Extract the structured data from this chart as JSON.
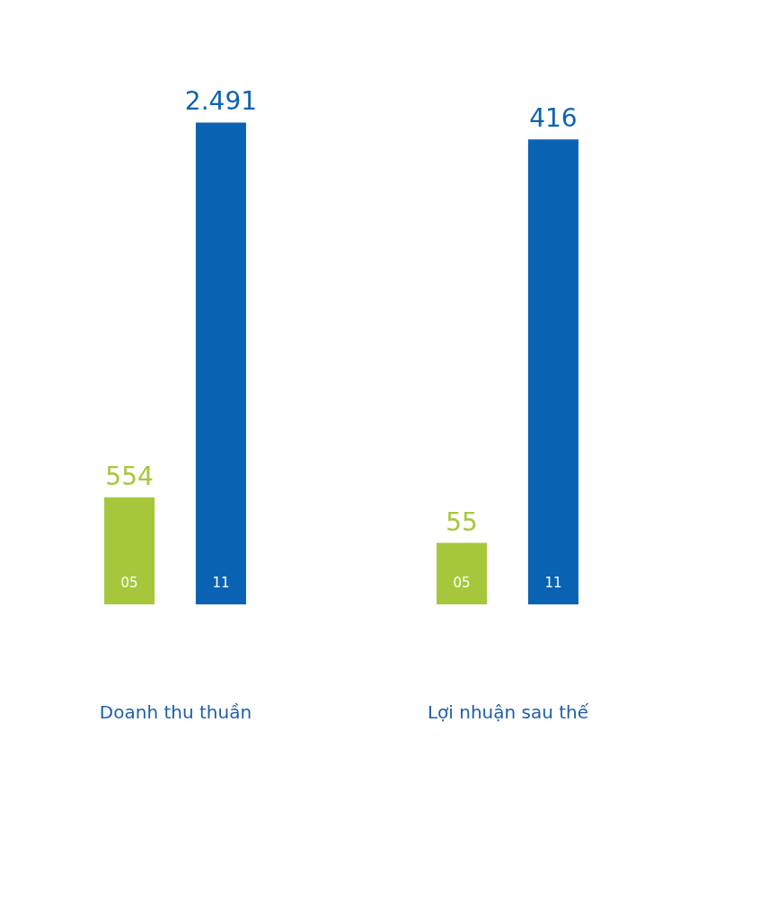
{
  "chart_data": [
    {
      "type": "bar",
      "xlabel": "Doanh thu thuần",
      "categories": [
        "05",
        "11"
      ],
      "values": [
        554,
        2491
      ],
      "colors": [
        "#a6c73c",
        "#0a63b2"
      ],
      "value_labels": [
        "554",
        "2.491"
      ],
      "tick_labels": "x"
    },
    {
      "type": "bar",
      "xlabel": "Lợi nhuận sau thế",
      "categories": [
        "05",
        "11"
      ],
      "values": [
        55,
        416
      ],
      "colors": [
        "#a6c73c",
        "#0a63b2"
      ],
      "value_labels": [
        "55",
        "416"
      ],
      "tick_labels": "x"
    }
  ]
}
